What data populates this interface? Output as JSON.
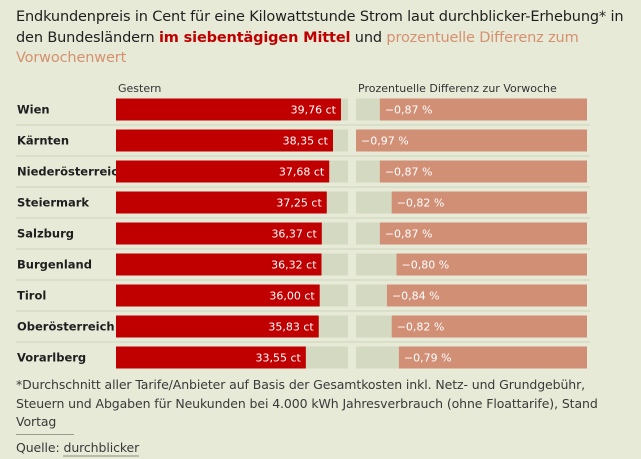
{
  "title": {
    "part1": "Endkundenpreis in Cent für eine Kilowattstunde Strom laut durchblicker-Erhebung* in den Bundesländern ",
    "highlight1": "im siebentägigen Mittel",
    "part2": " und ",
    "highlight2": "prozentuelle Differenz zum Vorwochenwert"
  },
  "colors": {
    "price_bar": "#c00000",
    "price_track": "#d4dac2",
    "diff_bar": "#d18f76",
    "diff_track": "#d4dac2",
    "background": "#e6ead7"
  },
  "chart_data": {
    "type": "bar",
    "categories": [
      "Wien",
      "Kärnten",
      "Niederösterreich",
      "Steiermark",
      "Salzburg",
      "Burgenland",
      "Tirol",
      "Oberösterreich",
      "Vorarlberg"
    ],
    "series": [
      {
        "name": "Gestern",
        "values": [
          39.76,
          38.35,
          37.68,
          37.25,
          36.37,
          36.32,
          36.0,
          35.83,
          33.55
        ],
        "labels": [
          "39,76 ct",
          "38,35 ct",
          "37,68 ct",
          "37,25 ct",
          "36,37 ct",
          "36,32 ct",
          "36,00 ct",
          "35,83 ct",
          "33,55 ct"
        ],
        "max": 41.0
      },
      {
        "name": "Prozentuelle Differenz zur Vorwoche",
        "values": [
          -0.87,
          -0.97,
          -0.87,
          -0.82,
          -0.87,
          -0.8,
          -0.84,
          -0.82,
          -0.79
        ],
        "labels": [
          "−0,87 %",
          "−0,97 %",
          "−0,87 %",
          "−0,82 %",
          "−0,87 %",
          "−0,80 %",
          "−0,84 %",
          "−0,82 %",
          "−0,79 %"
        ],
        "max": 0.97
      }
    ]
  },
  "footnote": "*Durchschnitt aller Tarife/Anbieter auf Basis der Gesamtkosten inkl. Netz- und Grundgebühr, Steuern und Abgaben für Neukunden bei 4.000 kWh Jahresverbrauch (ohne Floattarife), Stand Vortag",
  "source": {
    "label": "Quelle: ",
    "link_text": "durchblicker"
  }
}
